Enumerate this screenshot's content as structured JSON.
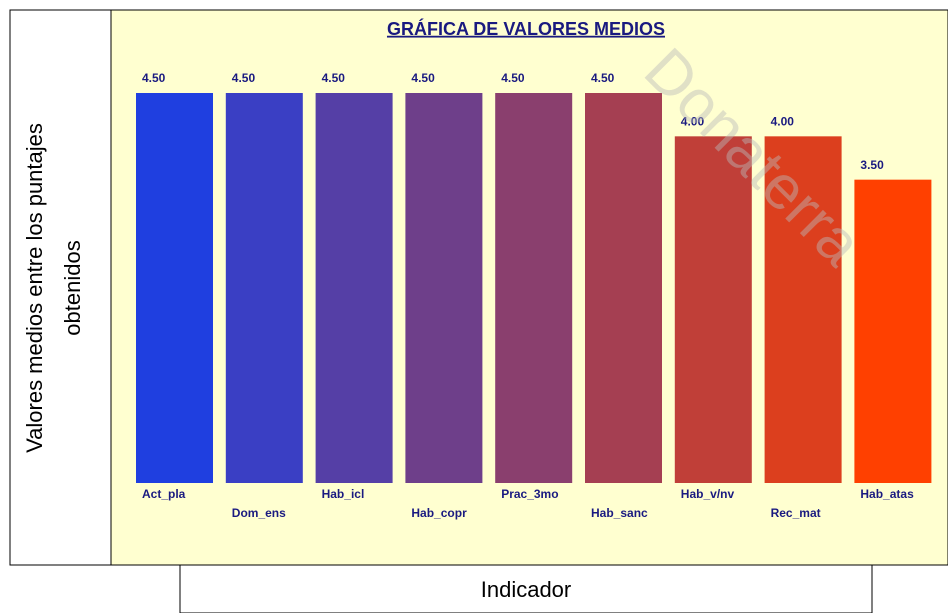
{
  "chart_data": {
    "type": "bar",
    "title": "GRÁFICA DE VALORES MEDIOS",
    "y_label": [
      "Valores medios entre los puntajes",
      "obtenidos"
    ],
    "x_label": "Indicador",
    "watermark": "Donaterra",
    "categories": [
      "Act_pla",
      "Dom_ens",
      "Hab_icl",
      "Hab_copr",
      "Prac_3mo",
      "Hab_sanc",
      "Hab_v/nv",
      "Rec_mat",
      "Hab_atas"
    ],
    "values": [
      4.5,
      4.5,
      4.5,
      4.5,
      4.5,
      4.5,
      4.0,
      4.0,
      3.5
    ],
    "value_labels": [
      "4.50",
      "4.50",
      "4.50",
      "4.50",
      "4.50",
      "4.50",
      "4.00",
      "4.00",
      "3.50"
    ],
    "colors": [
      "#1f3fe0",
      "#3a3fc4",
      "#553fa6",
      "#6e3f8a",
      "#8a3f6e",
      "#a53f52",
      "#c03f38",
      "#dc3f1e",
      "#ff4000"
    ],
    "ylim": [
      0,
      4.5
    ]
  }
}
